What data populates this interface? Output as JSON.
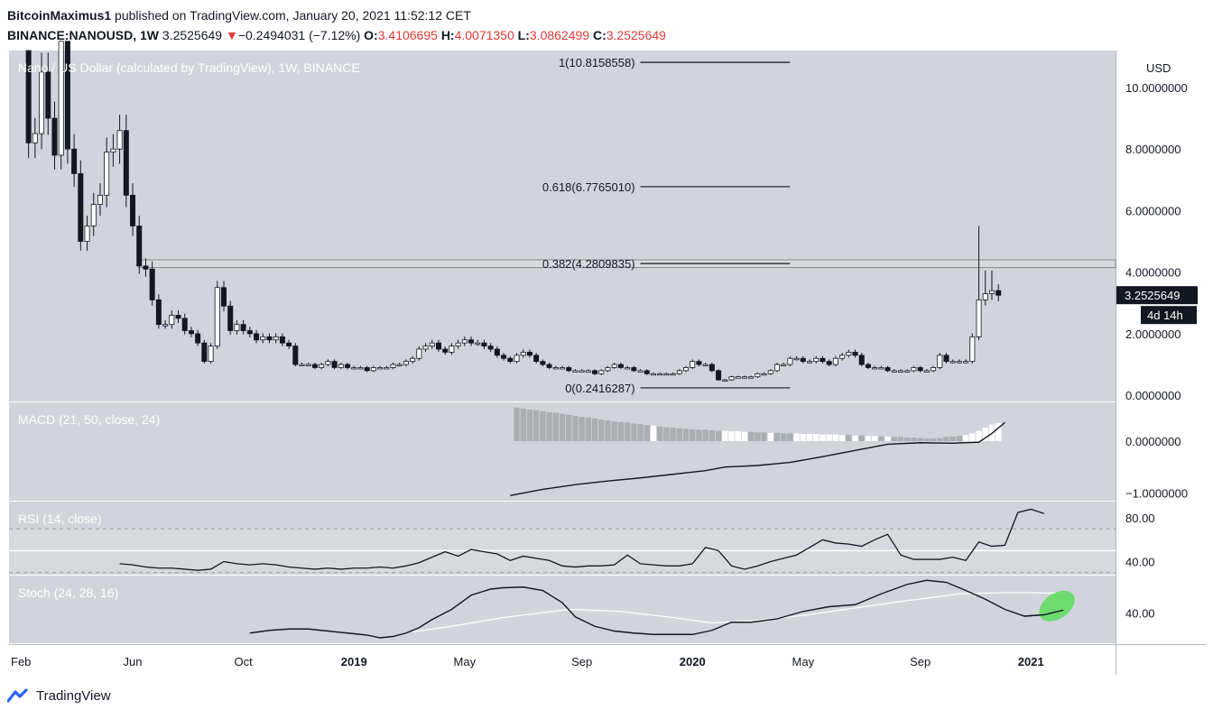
{
  "header": {
    "publisher": "BitcoinMaximus1",
    "published_text": "published on TradingView.com, January 20, 2021 11:52:12 CET",
    "symbol": "BINANCE:NANOUSD, 1W",
    "price": "3.2525649",
    "change_arrow": "▼",
    "change": "−0.2494031 (−7.12%)",
    "o_label": "O:",
    "o_value": "3.4106695",
    "h_label": "H:",
    "h_value": "4.0071350",
    "l_label": "L:",
    "l_value": "3.0862499",
    "c_label": "C:",
    "c_value": "3.2525649"
  },
  "footer": {
    "brand": "TradingView"
  },
  "colors": {
    "pane_bg": "#d1d4dc",
    "candle_up": "#ffffff",
    "candle_down": "#131722",
    "price_badge": "#131722",
    "stoch_highlight": "#5ddc5d"
  },
  "chart_data": [
    {
      "type": "candlestick",
      "pane": "price",
      "title": "Nano / US Dollar (calculated by TradingView), 1W, BINANCE",
      "y_axis_label": "USD",
      "y_ticks": [
        "10.0000000",
        "8.0000000",
        "6.0000000",
        "4.0000000",
        "2.0000000",
        "0.0000000"
      ],
      "y_tick_values": [
        10,
        8,
        6,
        4,
        2,
        0
      ],
      "ylim": [
        -0.2,
        11.2
      ],
      "x_ticks": [
        "Feb",
        "Jun",
        "Oct",
        "2019",
        "May",
        "Sep",
        "2020",
        "May",
        "Sep",
        "2021"
      ],
      "x_tick_values": [
        0,
        17,
        34,
        51,
        68,
        86,
        103,
        120,
        138,
        155
      ],
      "xlim": [
        -2,
        168
      ],
      "last_price_label": "3.2525649",
      "countdown_label": "4d 14h",
      "resistance_zone": [
        4.15,
        4.4
      ],
      "fib_levels": [
        {
          "label": "1(10.8158558)",
          "value": 10.8158558
        },
        {
          "label": "0.618(6.7765010)",
          "value": 6.776501
        },
        {
          "label": "0.382(4.2809835)",
          "value": 4.2809835
        },
        {
          "label": "0(0.2416287)",
          "value": 0.2416287
        }
      ],
      "fib_x_range": [
        95,
        118
      ],
      "close_path_points": [
        [
          0,
          11.2
        ],
        [
          1,
          8.2
        ],
        [
          2,
          8.5
        ],
        [
          3,
          10.5
        ],
        [
          4,
          9.0
        ],
        [
          5,
          7.8
        ],
        [
          6,
          11.5
        ],
        [
          7,
          8.0
        ],
        [
          8,
          7.2
        ],
        [
          9,
          5.0
        ],
        [
          10,
          5.5
        ],
        [
          11,
          6.2
        ],
        [
          12,
          6.5
        ],
        [
          13,
          7.9
        ],
        [
          14,
          8.0
        ],
        [
          15,
          8.6
        ],
        [
          16,
          6.5
        ],
        [
          17,
          5.5
        ],
        [
          18,
          4.2
        ],
        [
          19,
          4.1
        ],
        [
          20,
          3.1
        ],
        [
          21,
          2.3
        ],
        [
          22,
          2.3
        ],
        [
          23,
          2.6
        ],
        [
          24,
          2.5
        ],
        [
          25,
          2.1
        ],
        [
          26,
          2.0
        ],
        [
          27,
          1.7
        ],
        [
          28,
          1.1
        ],
        [
          29,
          1.6
        ],
        [
          30,
          3.5
        ],
        [
          31,
          2.9
        ],
        [
          32,
          2.1
        ],
        [
          33,
          2.3
        ],
        [
          34,
          2.1
        ],
        [
          35,
          2.0
        ],
        [
          36,
          1.8
        ],
        [
          37,
          1.9
        ],
        [
          38,
          1.8
        ],
        [
          39,
          1.9
        ],
        [
          40,
          1.7
        ],
        [
          41,
          1.6
        ],
        [
          42,
          1.0
        ],
        [
          43,
          1.0
        ],
        [
          44,
          1.0
        ],
        [
          45,
          0.9
        ],
        [
          46,
          1.0
        ],
        [
          47,
          1.1
        ],
        [
          48,
          0.9
        ],
        [
          49,
          1.0
        ],
        [
          50,
          0.9
        ],
        [
          51,
          0.9
        ],
        [
          52,
          0.9
        ],
        [
          53,
          0.8
        ],
        [
          54,
          0.9
        ],
        [
          55,
          0.9
        ],
        [
          56,
          0.9
        ],
        [
          57,
          1.0
        ],
        [
          58,
          1.0
        ],
        [
          59,
          1.1
        ],
        [
          60,
          1.2
        ],
        [
          61,
          1.5
        ],
        [
          62,
          1.6
        ],
        [
          63,
          1.7
        ],
        [
          64,
          1.5
        ],
        [
          65,
          1.4
        ],
        [
          66,
          1.6
        ],
        [
          67,
          1.7
        ],
        [
          68,
          1.8
        ],
        [
          69,
          1.7
        ],
        [
          70,
          1.7
        ],
        [
          71,
          1.6
        ],
        [
          72,
          1.5
        ],
        [
          73,
          1.3
        ],
        [
          74,
          1.2
        ],
        [
          75,
          1.1
        ],
        [
          76,
          1.3
        ],
        [
          77,
          1.4
        ],
        [
          78,
          1.3
        ],
        [
          79,
          1.1
        ],
        [
          80,
          1.0
        ],
        [
          81,
          0.9
        ],
        [
          82,
          0.9
        ],
        [
          83,
          0.9
        ],
        [
          84,
          0.8
        ],
        [
          85,
          0.8
        ],
        [
          86,
          0.8
        ],
        [
          87,
          0.8
        ],
        [
          88,
          0.7
        ],
        [
          89,
          0.8
        ],
        [
          90,
          0.9
        ],
        [
          91,
          1.0
        ],
        [
          92,
          0.9
        ],
        [
          93,
          0.9
        ],
        [
          94,
          0.8
        ],
        [
          95,
          0.8
        ],
        [
          96,
          0.7
        ],
        [
          97,
          0.7
        ],
        [
          98,
          0.7
        ],
        [
          99,
          0.7
        ],
        [
          100,
          0.7
        ],
        [
          101,
          0.8
        ],
        [
          102,
          0.9
        ],
        [
          103,
          1.1
        ],
        [
          104,
          1.0
        ],
        [
          105,
          1.0
        ],
        [
          106,
          0.8
        ],
        [
          107,
          0.5
        ],
        [
          108,
          0.5
        ],
        [
          109,
          0.6
        ],
        [
          110,
          0.6
        ],
        [
          111,
          0.6
        ],
        [
          112,
          0.6
        ],
        [
          113,
          0.7
        ],
        [
          114,
          0.7
        ],
        [
          115,
          0.8
        ],
        [
          116,
          1.0
        ],
        [
          117,
          1.0
        ],
        [
          118,
          1.2
        ],
        [
          119,
          1.2
        ],
        [
          120,
          1.1
        ],
        [
          121,
          1.1
        ],
        [
          122,
          1.2
        ],
        [
          123,
          1.1
        ],
        [
          124,
          1.0
        ],
        [
          125,
          1.2
        ],
        [
          126,
          1.3
        ],
        [
          127,
          1.4
        ],
        [
          128,
          1.3
        ],
        [
          129,
          1.0
        ],
        [
          130,
          0.9
        ],
        [
          131,
          0.9
        ],
        [
          132,
          0.9
        ],
        [
          133,
          0.8
        ],
        [
          134,
          0.8
        ],
        [
          135,
          0.8
        ],
        [
          136,
          0.8
        ],
        [
          137,
          0.9
        ],
        [
          138,
          0.8
        ],
        [
          139,
          0.8
        ],
        [
          140,
          0.9
        ],
        [
          141,
          1.3
        ],
        [
          142,
          1.1
        ],
        [
          143,
          1.1
        ],
        [
          144,
          1.1
        ],
        [
          145,
          1.1
        ],
        [
          146,
          1.9
        ],
        [
          147,
          3.1
        ],
        [
          148,
          3.3
        ],
        [
          149,
          3.4
        ],
        [
          150,
          3.25
        ]
      ]
    },
    {
      "type": "histogram+line",
      "pane": "macd",
      "title": "MACD (21, 50, close, 24)",
      "y_ticks": [
        "0.0000000",
        "−1.0000000"
      ],
      "y_tick_values": [
        0,
        -1
      ],
      "ylim": [
        -1.15,
        0.75
      ],
      "histogram_x_range": [
        76,
        150
      ],
      "histogram_values": [
        0.65,
        0.63,
        0.61,
        0.6,
        0.58,
        0.56,
        0.55,
        0.53,
        0.51,
        0.49,
        0.47,
        0.46,
        0.44,
        0.42,
        0.4,
        0.38,
        0.37,
        0.36,
        0.34,
        0.33,
        0.31,
        0.3,
        0.28,
        0.27,
        0.26,
        0.25,
        0.24,
        0.23,
        0.22,
        0.22,
        0.21,
        0.2,
        0.2,
        0.19,
        0.19,
        0.18,
        0.18,
        0.17,
        0.17,
        0.16,
        0.16,
        0.15,
        0.15,
        0.15,
        0.14,
        0.14,
        0.14,
        0.13,
        0.13,
        0.13,
        0.12,
        0.12,
        0.11,
        0.11,
        0.1,
        0.1,
        0.09,
        0.09,
        0.08,
        0.08,
        0.07,
        0.07,
        0.06,
        0.05,
        0.05,
        0.06,
        0.08,
        0.09,
        0.1,
        0.12,
        0.15,
        0.2,
        0.26,
        0.32,
        0.35
      ],
      "histogram_white_bars": [
        21,
        32,
        33,
        34,
        35,
        39,
        43,
        44,
        45,
        46,
        47,
        48,
        49,
        50,
        52,
        54,
        55,
        57,
        69,
        70,
        71,
        72,
        73,
        74
      ],
      "line_points": [
        [
          75,
          -1.05
        ],
        [
          80,
          -0.93
        ],
        [
          85,
          -0.84
        ],
        [
          90,
          -0.77
        ],
        [
          95,
          -0.71
        ],
        [
          100,
          -0.64
        ],
        [
          105,
          -0.57
        ],
        [
          108,
          -0.5
        ],
        [
          113,
          -0.47
        ],
        [
          118,
          -0.41
        ],
        [
          123,
          -0.3
        ],
        [
          128,
          -0.18
        ],
        [
          133,
          -0.06
        ],
        [
          138,
          -0.03
        ],
        [
          143,
          -0.04
        ],
        [
          147,
          -0.02
        ],
        [
          149,
          0.15
        ],
        [
          151,
          0.36
        ]
      ]
    },
    {
      "type": "line",
      "pane": "rsi",
      "title": "RSI (14, close)",
      "y_ticks": [
        "80.00",
        "40.00"
      ],
      "y_tick_values": [
        80,
        40
      ],
      "ylim": [
        28,
        95
      ],
      "band_lines": [
        70,
        30
      ],
      "mid_line": 50,
      "points": [
        [
          15,
          38
        ],
        [
          17,
          37
        ],
        [
          19,
          35
        ],
        [
          21,
          34
        ],
        [
          23,
          34
        ],
        [
          25,
          33
        ],
        [
          27,
          32
        ],
        [
          29,
          33
        ],
        [
          31,
          40
        ],
        [
          33,
          38
        ],
        [
          35,
          37
        ],
        [
          37,
          38
        ],
        [
          39,
          37
        ],
        [
          41,
          35
        ],
        [
          43,
          34
        ],
        [
          45,
          33
        ],
        [
          47,
          34
        ],
        [
          49,
          33
        ],
        [
          51,
          34
        ],
        [
          53,
          34
        ],
        [
          55,
          35
        ],
        [
          57,
          34
        ],
        [
          59,
          36
        ],
        [
          61,
          39
        ],
        [
          63,
          44
        ],
        [
          65,
          49
        ],
        [
          67,
          45
        ],
        [
          69,
          51
        ],
        [
          71,
          49
        ],
        [
          73,
          47
        ],
        [
          75,
          41
        ],
        [
          77,
          45
        ],
        [
          79,
          43
        ],
        [
          81,
          41
        ],
        [
          83,
          36
        ],
        [
          85,
          35
        ],
        [
          87,
          36
        ],
        [
          89,
          36
        ],
        [
          91,
          37
        ],
        [
          93,
          46
        ],
        [
          95,
          38
        ],
        [
          97,
          37
        ],
        [
          99,
          36
        ],
        [
          101,
          36
        ],
        [
          103,
          38
        ],
        [
          105,
          53
        ],
        [
          107,
          50
        ],
        [
          109,
          36
        ],
        [
          111,
          33
        ],
        [
          113,
          36
        ],
        [
          115,
          40
        ],
        [
          117,
          43
        ],
        [
          119,
          46
        ],
        [
          121,
          53
        ],
        [
          123,
          60
        ],
        [
          125,
          57
        ],
        [
          127,
          56
        ],
        [
          129,
          54
        ],
        [
          131,
          60
        ],
        [
          133,
          65
        ],
        [
          135,
          46
        ],
        [
          137,
          42
        ],
        [
          139,
          42
        ],
        [
          141,
          42
        ],
        [
          143,
          44
        ],
        [
          145,
          41
        ],
        [
          147,
          58
        ],
        [
          149,
          54
        ],
        [
          151,
          55
        ],
        [
          153,
          85
        ],
        [
          155,
          88
        ],
        [
          157,
          84
        ]
      ],
      "last_points": [
        [
          153,
          85
        ],
        [
          155,
          88
        ],
        [
          157,
          84
        ]
      ]
    },
    {
      "type": "line",
      "pane": "stoch",
      "title": "Stoch (24, 28, 16)",
      "y_ticks": [
        "40.00"
      ],
      "y_tick_values": [
        40
      ],
      "ylim": [
        -5,
        95
      ],
      "k_line": [
        [
          35,
          10
        ],
        [
          38,
          14
        ],
        [
          41,
          16
        ],
        [
          44,
          16
        ],
        [
          47,
          13
        ],
        [
          50,
          10
        ],
        [
          53,
          7
        ],
        [
          55,
          3
        ],
        [
          57,
          5
        ],
        [
          59,
          10
        ],
        [
          61,
          18
        ],
        [
          63,
          30
        ],
        [
          66,
          45
        ],
        [
          69,
          66
        ],
        [
          72,
          75
        ],
        [
          74,
          77
        ],
        [
          77,
          78
        ],
        [
          80,
          73
        ],
        [
          83,
          55
        ],
        [
          85,
          34
        ],
        [
          88,
          20
        ],
        [
          91,
          13
        ],
        [
          94,
          10
        ],
        [
          97,
          8
        ],
        [
          100,
          8
        ],
        [
          103,
          8
        ],
        [
          106,
          14
        ],
        [
          109,
          26
        ],
        [
          112,
          26
        ],
        [
          116,
          31
        ],
        [
          120,
          42
        ],
        [
          124,
          49
        ],
        [
          128,
          52
        ],
        [
          132,
          68
        ],
        [
          136,
          82
        ],
        [
          139,
          88
        ],
        [
          142,
          85
        ],
        [
          145,
          73
        ],
        [
          148,
          60
        ],
        [
          151,
          45
        ],
        [
          154,
          35
        ],
        [
          157,
          37
        ],
        [
          160,
          44
        ]
      ],
      "d_line": [
        [
          60,
          12
        ],
        [
          66,
          20
        ],
        [
          74,
          33
        ],
        [
          84,
          45
        ],
        [
          92,
          42
        ],
        [
          100,
          33
        ],
        [
          106,
          25
        ],
        [
          112,
          28
        ],
        [
          120,
          36
        ],
        [
          128,
          47
        ],
        [
          136,
          58
        ],
        [
          144,
          68
        ],
        [
          152,
          70
        ],
        [
          160,
          69
        ]
      ],
      "highlight_center": [
        159,
        50
      ]
    }
  ]
}
